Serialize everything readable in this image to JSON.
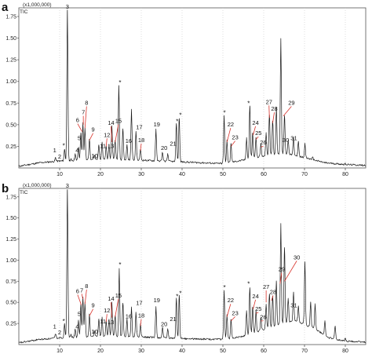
{
  "chart_data": [
    {
      "type": "line",
      "panel": "a",
      "multiplier_label": "(x1,000,000)",
      "signal_label": "TIC",
      "xlim": [
        0,
        85
      ],
      "ylim": [
        0,
        1.85
      ],
      "x_ticks": [
        "10",
        "20",
        "30",
        "40",
        "50",
        "60",
        "70",
        "80"
      ],
      "x_tick_values": [
        10,
        20,
        30,
        40,
        50,
        60,
        70,
        80
      ],
      "y_ticks": [
        "0.25",
        "0.50",
        "0.75",
        "1.00",
        "1.25",
        "1.50",
        "1.75"
      ],
      "y_tick_values": [
        0.25,
        0.5,
        0.75,
        1.0,
        1.25,
        1.5,
        1.75
      ],
      "baseline": [
        [
          0,
          0.02
        ],
        [
          5,
          0.06
        ],
        [
          10,
          0.08
        ],
        [
          20,
          0.1
        ],
        [
          30,
          0.09
        ],
        [
          40,
          0.07
        ],
        [
          50,
          0.05
        ],
        [
          55,
          0.09
        ],
        [
          60,
          0.14
        ],
        [
          65,
          0.17
        ],
        [
          70,
          0.12
        ],
        [
          75,
          0.06
        ],
        [
          80,
          0.04
        ],
        [
          85,
          0.03
        ]
      ],
      "peaks": [
        {
          "x": 4.5,
          "y": 0.05
        },
        {
          "x": 9.0,
          "y": 0.12
        },
        {
          "x": 10.2,
          "y": 0.08
        },
        {
          "x": 11.2,
          "y": 0.22
        },
        {
          "x": 11.9,
          "y": 1.82
        },
        {
          "x": 12.8,
          "y": 0.1
        },
        {
          "x": 13.8,
          "y": 0.16
        },
        {
          "x": 14.6,
          "y": 0.24
        },
        {
          "x": 15.2,
          "y": 0.4
        },
        {
          "x": 15.7,
          "y": 0.52
        },
        {
          "x": 16.2,
          "y": 0.46
        },
        {
          "x": 17.3,
          "y": 0.34
        },
        {
          "x": 18.5,
          "y": 0.15
        },
        {
          "x": 19.6,
          "y": 0.27
        },
        {
          "x": 20.4,
          "y": 0.3
        },
        {
          "x": 21.4,
          "y": 0.25
        },
        {
          "x": 22.1,
          "y": 0.27
        },
        {
          "x": 22.8,
          "y": 0.48
        },
        {
          "x": 23.6,
          "y": 0.32
        },
        {
          "x": 24.5,
          "y": 0.95
        },
        {
          "x": 25.5,
          "y": 0.45
        },
        {
          "x": 26.5,
          "y": 0.28
        },
        {
          "x": 27.6,
          "y": 0.68
        },
        {
          "x": 28.7,
          "y": 0.42
        },
        {
          "x": 29.8,
          "y": 0.22
        },
        {
          "x": 33.6,
          "y": 0.45
        },
        {
          "x": 35.2,
          "y": 0.18
        },
        {
          "x": 36.5,
          "y": 0.16
        },
        {
          "x": 38.6,
          "y": 0.52
        },
        {
          "x": 39.3,
          "y": 0.58
        },
        {
          "x": 50.3,
          "y": 0.6
        },
        {
          "x": 51.0,
          "y": 0.32
        },
        {
          "x": 52.0,
          "y": 0.28
        },
        {
          "x": 55.8,
          "y": 0.35
        },
        {
          "x": 56.6,
          "y": 0.72
        },
        {
          "x": 57.3,
          "y": 0.4
        },
        {
          "x": 58.1,
          "y": 0.35
        },
        {
          "x": 59.3,
          "y": 0.28
        },
        {
          "x": 60.6,
          "y": 0.4
        },
        {
          "x": 61.4,
          "y": 0.62
        },
        {
          "x": 62.2,
          "y": 0.55
        },
        {
          "x": 63.1,
          "y": 0.7
        },
        {
          "x": 64.2,
          "y": 1.5
        },
        {
          "x": 65.1,
          "y": 0.6
        },
        {
          "x": 66.0,
          "y": 0.32
        },
        {
          "x": 67.3,
          "y": 0.35
        },
        {
          "x": 68.5,
          "y": 0.3
        },
        {
          "x": 70.1,
          "y": 0.28
        },
        {
          "x": 72.0,
          "y": 0.12
        },
        {
          "x": 75.0,
          "y": 0.06
        },
        {
          "x": 80.0,
          "y": 0.05
        }
      ],
      "labels": [
        {
          "text": "1",
          "x": 8.8,
          "y": 0.18,
          "lead": false
        },
        {
          "text": "2",
          "x": 10.0,
          "y": 0.11,
          "lead": false
        },
        {
          "text": "3",
          "x": 11.9,
          "y": 1.84,
          "lead": false
        },
        {
          "text": "*",
          "x": 11.0,
          "y": 0.26,
          "lead": false
        },
        {
          "text": "4",
          "x": 14.3,
          "y": 0.18,
          "lead": false
        },
        {
          "text": "5",
          "x": 14.8,
          "y": 0.32,
          "lead": false
        },
        {
          "text": "6",
          "x": 14.4,
          "y": 0.53,
          "lead": true,
          "tx": 15.5,
          "ty": 0.42
        },
        {
          "text": "7",
          "x": 15.8,
          "y": 0.62,
          "lead": true,
          "tx": 15.8,
          "ty": 0.5
        },
        {
          "text": "8",
          "x": 16.6,
          "y": 0.73,
          "lead": true,
          "tx": 16.2,
          "ty": 0.46
        },
        {
          "text": "9",
          "x": 18.2,
          "y": 0.42,
          "lead": true,
          "tx": 17.3,
          "ty": 0.32
        },
        {
          "text": "10",
          "x": 18.6,
          "y": 0.12,
          "lead": false
        },
        {
          "text": "11",
          "x": 20.6,
          "y": 0.23,
          "lead": false
        },
        {
          "text": "12",
          "x": 21.6,
          "y": 0.36,
          "lead": true,
          "tx": 21.4,
          "ty": 0.25
        },
        {
          "text": "13",
          "x": 22.5,
          "y": 0.23,
          "lead": false
        },
        {
          "text": "14",
          "x": 22.6,
          "y": 0.5,
          "lead": true,
          "tx": 22.8,
          "ty": 0.3
        },
        {
          "text": "15",
          "x": 24.4,
          "y": 0.52,
          "lead": true,
          "tx": 23.6,
          "ty": 0.3
        },
        {
          "text": "*",
          "x": 24.8,
          "y": 0.99,
          "lead": false
        },
        {
          "text": "16",
          "x": 26.9,
          "y": 0.29,
          "lead": false
        },
        {
          "text": "17",
          "x": 29.5,
          "y": 0.45,
          "lead": false
        },
        {
          "text": "18",
          "x": 30.0,
          "y": 0.3,
          "lead": true,
          "tx": 29.8,
          "ty": 0.2
        },
        {
          "text": "19",
          "x": 33.8,
          "y": 0.48,
          "lead": false
        },
        {
          "text": "20",
          "x": 35.6,
          "y": 0.21,
          "lead": false
        },
        {
          "text": "21",
          "x": 37.8,
          "y": 0.26,
          "lead": false
        },
        {
          "text": "*",
          "x": 38.8,
          "y": 0.54,
          "lead": false
        },
        {
          "text": "*",
          "x": 39.6,
          "y": 0.61,
          "lead": false
        },
        {
          "text": "*",
          "x": 50.4,
          "y": 0.64,
          "lead": false
        },
        {
          "text": "22",
          "x": 51.9,
          "y": 0.48,
          "lead": true,
          "tx": 51.0,
          "ty": 0.3
        },
        {
          "text": "23",
          "x": 53.0,
          "y": 0.33,
          "lead": true,
          "tx": 52.0,
          "ty": 0.25
        },
        {
          "text": "*",
          "x": 56.3,
          "y": 0.75,
          "lead": false
        },
        {
          "text": "24",
          "x": 58.0,
          "y": 0.5,
          "lead": true,
          "tx": 57.4,
          "ty": 0.38
        },
        {
          "text": "25",
          "x": 58.7,
          "y": 0.38,
          "lead": true,
          "tx": 58.1,
          "ty": 0.33
        },
        {
          "text": "26",
          "x": 59.9,
          "y": 0.27,
          "lead": true,
          "tx": 59.3,
          "ty": 0.24
        },
        {
          "text": "27",
          "x": 61.3,
          "y": 0.74,
          "lead": true,
          "tx": 61.4,
          "ty": 0.58
        },
        {
          "text": "28",
          "x": 62.6,
          "y": 0.66,
          "lead": true,
          "tx": 62.2,
          "ty": 0.52
        },
        {
          "text": "29",
          "x": 66.8,
          "y": 0.73,
          "lead": true,
          "tx": 64.8,
          "ty": 0.6
        },
        {
          "text": "30",
          "x": 65.4,
          "y": 0.3,
          "lead": false
        },
        {
          "text": "31",
          "x": 67.4,
          "y": 0.32,
          "lead": false
        }
      ]
    },
    {
      "type": "line",
      "panel": "b",
      "multiplier_label": "(x1,000,000)",
      "signal_label": "TIC",
      "xlim": [
        0,
        85
      ],
      "ylim": [
        0,
        1.85
      ],
      "x_ticks": [
        "10",
        "20",
        "30",
        "40",
        "50",
        "60",
        "70",
        "80"
      ],
      "x_tick_values": [
        10,
        20,
        30,
        40,
        50,
        60,
        70,
        80
      ],
      "y_ticks": [
        "0.25",
        "0.50",
        "0.75",
        "1.00",
        "1.25",
        "1.50",
        "1.75"
      ],
      "y_tick_values": [
        0.25,
        0.5,
        0.75,
        1.0,
        1.25,
        1.5,
        1.75
      ],
      "baseline": [
        [
          0,
          0.02
        ],
        [
          5,
          0.06
        ],
        [
          10,
          0.08
        ],
        [
          20,
          0.1
        ],
        [
          30,
          0.09
        ],
        [
          40,
          0.07
        ],
        [
          50,
          0.06
        ],
        [
          55,
          0.1
        ],
        [
          60,
          0.18
        ],
        [
          65,
          0.26
        ],
        [
          68,
          0.28
        ],
        [
          72,
          0.2
        ],
        [
          76,
          0.08
        ],
        [
          80,
          0.04
        ],
        [
          85,
          0.03
        ]
      ],
      "peaks": [
        {
          "x": 4.5,
          "y": 0.06
        },
        {
          "x": 9.0,
          "y": 0.13
        },
        {
          "x": 10.2,
          "y": 0.09
        },
        {
          "x": 11.2,
          "y": 0.24
        },
        {
          "x": 11.9,
          "y": 1.84
        },
        {
          "x": 12.8,
          "y": 0.12
        },
        {
          "x": 13.8,
          "y": 0.18
        },
        {
          "x": 14.6,
          "y": 0.28
        },
        {
          "x": 15.2,
          "y": 0.48
        },
        {
          "x": 15.7,
          "y": 0.56
        },
        {
          "x": 16.2,
          "y": 0.5
        },
        {
          "x": 17.3,
          "y": 0.36
        },
        {
          "x": 18.5,
          "y": 0.16
        },
        {
          "x": 19.6,
          "y": 0.3
        },
        {
          "x": 20.4,
          "y": 0.32
        },
        {
          "x": 21.4,
          "y": 0.28
        },
        {
          "x": 22.1,
          "y": 0.3
        },
        {
          "x": 22.8,
          "y": 0.5
        },
        {
          "x": 23.6,
          "y": 0.35
        },
        {
          "x": 24.6,
          "y": 0.9
        },
        {
          "x": 25.5,
          "y": 0.5
        },
        {
          "x": 26.5,
          "y": 0.3
        },
        {
          "x": 27.6,
          "y": 0.45
        },
        {
          "x": 28.7,
          "y": 0.38
        },
        {
          "x": 29.8,
          "y": 0.24
        },
        {
          "x": 33.6,
          "y": 0.45
        },
        {
          "x": 35.2,
          "y": 0.2
        },
        {
          "x": 36.5,
          "y": 0.18
        },
        {
          "x": 38.6,
          "y": 0.55
        },
        {
          "x": 39.3,
          "y": 0.58
        },
        {
          "x": 50.3,
          "y": 0.64
        },
        {
          "x": 51.0,
          "y": 0.35
        },
        {
          "x": 52.0,
          "y": 0.3
        },
        {
          "x": 55.8,
          "y": 0.4
        },
        {
          "x": 56.6,
          "y": 0.68
        },
        {
          "x": 57.3,
          "y": 0.45
        },
        {
          "x": 58.1,
          "y": 0.4
        },
        {
          "x": 59.3,
          "y": 0.32
        },
        {
          "x": 60.6,
          "y": 0.48
        },
        {
          "x": 61.4,
          "y": 0.6
        },
        {
          "x": 62.2,
          "y": 0.58
        },
        {
          "x": 63.1,
          "y": 0.75
        },
        {
          "x": 64.2,
          "y": 1.44
        },
        {
          "x": 65.1,
          "y": 1.15
        },
        {
          "x": 66.0,
          "y": 0.55
        },
        {
          "x": 67.3,
          "y": 0.62
        },
        {
          "x": 68.5,
          "y": 0.45
        },
        {
          "x": 70.1,
          "y": 0.98
        },
        {
          "x": 71.5,
          "y": 0.5
        },
        {
          "x": 72.6,
          "y": 0.48
        },
        {
          "x": 75.0,
          "y": 0.28
        },
        {
          "x": 77.5,
          "y": 0.22
        },
        {
          "x": 80.0,
          "y": 0.07
        }
      ],
      "labels": [
        {
          "text": "1",
          "x": 8.8,
          "y": 0.19,
          "lead": false
        },
        {
          "text": "2",
          "x": 10.0,
          "y": 0.12,
          "lead": false
        },
        {
          "text": "3",
          "x": 11.9,
          "y": 1.86,
          "lead": false
        },
        {
          "text": "*",
          "x": 11.0,
          "y": 0.28,
          "lead": false
        },
        {
          "text": "4",
          "x": 14.3,
          "y": 0.19,
          "lead": false
        },
        {
          "text": "5",
          "x": 14.8,
          "y": 0.34,
          "lead": false
        },
        {
          "text": "6",
          "x": 14.4,
          "y": 0.61,
          "lead": true,
          "tx": 15.3,
          "ty": 0.47
        },
        {
          "text": "7",
          "x": 15.4,
          "y": 0.62,
          "lead": true,
          "tx": 15.7,
          "ty": 0.54
        },
        {
          "text": "8",
          "x": 16.6,
          "y": 0.67,
          "lead": true,
          "tx": 16.2,
          "ty": 0.48
        },
        {
          "text": "9",
          "x": 18.2,
          "y": 0.44,
          "lead": true,
          "tx": 17.3,
          "ty": 0.34
        },
        {
          "text": "10",
          "x": 18.6,
          "y": 0.13,
          "lead": false
        },
        {
          "text": "11",
          "x": 20.6,
          "y": 0.25,
          "lead": false
        },
        {
          "text": "12",
          "x": 21.6,
          "y": 0.38,
          "lead": true,
          "tx": 21.4,
          "ty": 0.27
        },
        {
          "text": "13",
          "x": 22.5,
          "y": 0.24,
          "lead": false
        },
        {
          "text": "14",
          "x": 22.6,
          "y": 0.52,
          "lead": true,
          "tx": 22.8,
          "ty": 0.32
        },
        {
          "text": "15",
          "x": 24.4,
          "y": 0.56,
          "lead": true,
          "tx": 23.6,
          "ty": 0.33
        },
        {
          "text": "*",
          "x": 24.8,
          "y": 0.95,
          "lead": false
        },
        {
          "text": "16",
          "x": 26.9,
          "y": 0.31,
          "lead": false
        },
        {
          "text": "17",
          "x": 29.5,
          "y": 0.47,
          "lead": false
        },
        {
          "text": "18",
          "x": 30.0,
          "y": 0.32,
          "lead": true,
          "tx": 29.8,
          "ty": 0.22
        },
        {
          "text": "19",
          "x": 33.8,
          "y": 0.5,
          "lead": false
        },
        {
          "text": "20",
          "x": 35.6,
          "y": 0.22,
          "lead": false
        },
        {
          "text": "21",
          "x": 37.8,
          "y": 0.28,
          "lead": false
        },
        {
          "text": "*",
          "x": 38.8,
          "y": 0.57,
          "lead": false
        },
        {
          "text": "*",
          "x": 39.6,
          "y": 0.61,
          "lead": false
        },
        {
          "text": "*",
          "x": 50.4,
          "y": 0.68,
          "lead": false
        },
        {
          "text": "22",
          "x": 51.9,
          "y": 0.5,
          "lead": true,
          "tx": 51.0,
          "ty": 0.33
        },
        {
          "text": "23",
          "x": 53.0,
          "y": 0.35,
          "lead": true,
          "tx": 52.0,
          "ty": 0.28
        },
        {
          "text": "*",
          "x": 56.3,
          "y": 0.72,
          "lead": false
        },
        {
          "text": "24",
          "x": 58.0,
          "y": 0.55,
          "lead": true,
          "tx": 57.4,
          "ty": 0.42
        },
        {
          "text": "25",
          "x": 58.7,
          "y": 0.4,
          "lead": true,
          "tx": 58.1,
          "ty": 0.37
        },
        {
          "text": "26",
          "x": 59.9,
          "y": 0.3,
          "lead": true,
          "tx": 59.3,
          "ty": 0.28
        },
        {
          "text": "27",
          "x": 60.6,
          "y": 0.66,
          "lead": true,
          "tx": 60.6,
          "ty": 0.5
        },
        {
          "text": "28",
          "x": 62.3,
          "y": 0.6,
          "lead": true,
          "tx": 61.9,
          "ty": 0.52
        },
        {
          "text": "29",
          "x": 64.4,
          "y": 0.87,
          "lead": true,
          "tx": 64.0,
          "ty": 0.72
        },
        {
          "text": "30",
          "x": 68.1,
          "y": 1.01,
          "lead": true,
          "tx": 65.1,
          "ty": 0.75
        },
        {
          "text": "31",
          "x": 67.4,
          "y": 0.44,
          "lead": false
        }
      ]
    }
  ],
  "colors": {
    "trace": "#1a1a1a",
    "leader": "#d9322b",
    "frame": "#555555",
    "grid": "#c8c8c8"
  }
}
